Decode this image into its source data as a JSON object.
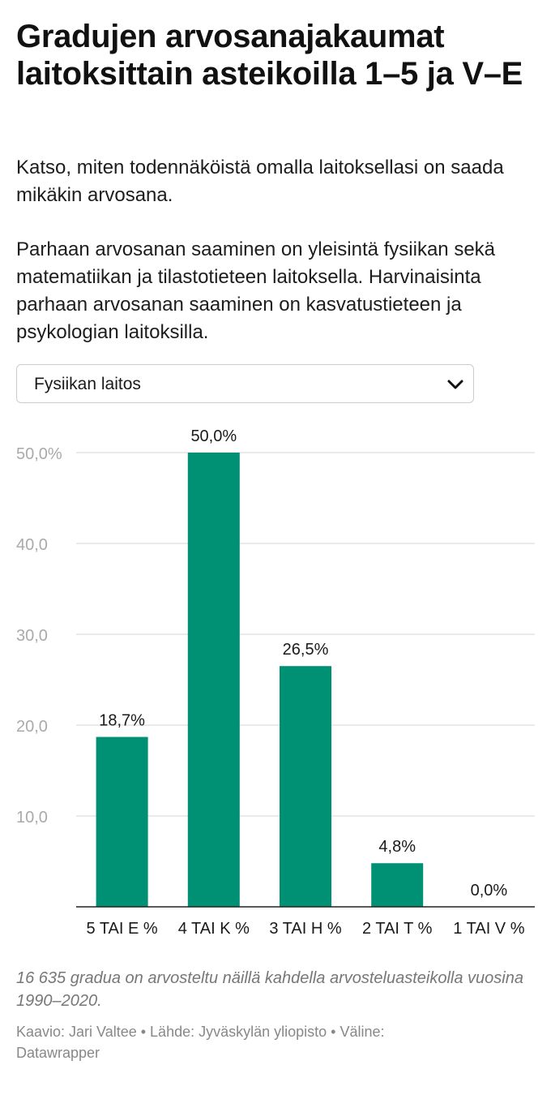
{
  "header": {
    "title": "Gradujen arvosanajakaumat laitoksittain asteikoilla 1–5 ja V–E",
    "description_1": "Katso, miten todennäköistä omalla laitoksellasi on saada mikäkin arvosana.",
    "description_2": "Parhaan arvosanan saaminen on yleisintä fysiikan sekä matematiikan ja tilastotieteen laitoksella. Harvinaisinta parhaan arvosanan saaminen on kasvatustieteen ja psykologian laitoksilla."
  },
  "dropdown": {
    "selected": "Fysiikan laitos",
    "icon": "chevron-down-icon"
  },
  "chart_data": {
    "type": "bar",
    "categories": [
      "5 TAI E %",
      "4 TAI K %",
      "3 TAI H %",
      "2 TAI T %",
      "1 TAI V %"
    ],
    "values": [
      18.7,
      50.0,
      26.5,
      4.8,
      0.0
    ],
    "data_labels": [
      "18,7%",
      "50,0%",
      "26,5%",
      "4,8%",
      "0,0%"
    ],
    "yticks": [
      10,
      20,
      30,
      40,
      50
    ],
    "ytick_labels": [
      "10,0",
      "20,0",
      "30,0",
      "40,0",
      "50,0%"
    ],
    "ylim": [
      0,
      50
    ],
    "grid": true,
    "bar_color": "#009073",
    "title": "",
    "xlabel": "",
    "ylabel": ""
  },
  "footer": {
    "notes": "16 635 gradua on arvosteltu näillä kahdella arvosteluasteikolla vuosina 1990–2020.",
    "byline": "Kaavio: Jari Valtee • Lähde: Jyväskylän yliopisto • Väline: Datawrapper"
  }
}
